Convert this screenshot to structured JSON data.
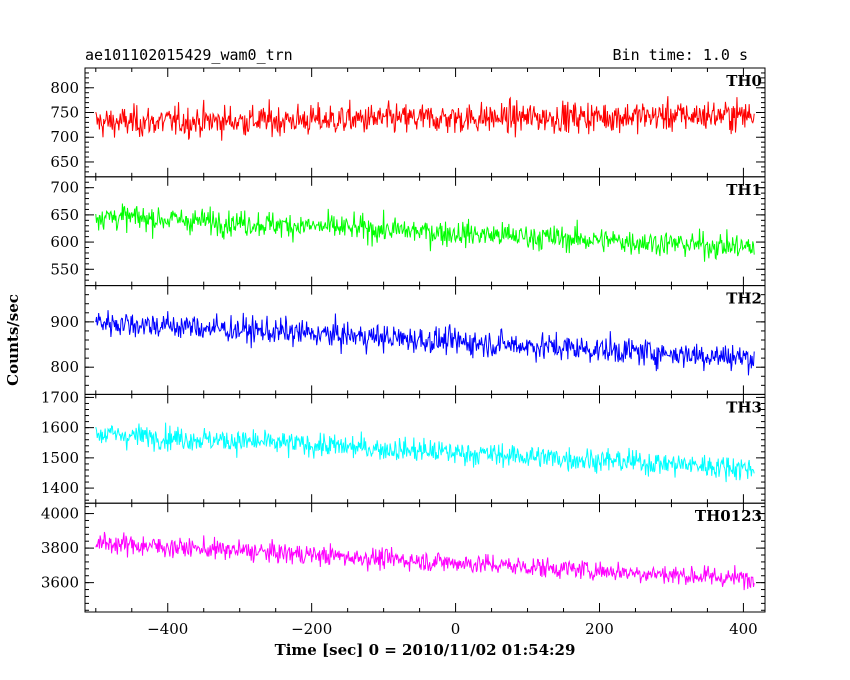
{
  "chart_data": {
    "type": "line",
    "title_left": "ae101102015429_wam0_trn",
    "title_right": "Bin time: 1.0 s",
    "xlabel": "Time [sec] 0 = 2010/11/02 01:54:29",
    "ylabel": "Counts/sec",
    "xlim": [
      -515,
      430
    ],
    "x_ticks": [
      -400,
      -200,
      0,
      200,
      400
    ],
    "x_range": [
      -500,
      415
    ],
    "panels": [
      {
        "name": "TH0",
        "color": "#ff0000",
        "ylim": [
          620,
          840
        ],
        "y_ticks": [
          650,
          700,
          750,
          800
        ],
        "start": 730,
        "end": 745,
        "noise": 40,
        "clip_low": 620,
        "clip_high": 840
      },
      {
        "name": "TH1",
        "color": "#00ff00",
        "ylim": [
          520,
          720
        ],
        "y_ticks": [
          550,
          600,
          650,
          700
        ],
        "start": 648,
        "end": 590,
        "noise": 30,
        "clip_low": 520,
        "clip_high": 720
      },
      {
        "name": "TH2",
        "color": "#0000ff",
        "ylim": [
          740,
          980
        ],
        "y_ticks": [
          800,
          900
        ],
        "start": 900,
        "end": 820,
        "noise": 38,
        "clip_low": 740,
        "clip_high": 980
      },
      {
        "name": "TH3",
        "color": "#00ffff",
        "ylim": [
          1350,
          1710
        ],
        "y_ticks": [
          1400,
          1500,
          1600,
          1700
        ],
        "start": 1580,
        "end": 1465,
        "noise": 50,
        "clip_low": 1350,
        "clip_high": 1710
      },
      {
        "name": "TH0123",
        "color": "#ff00ff",
        "ylim": [
          3430,
          4060
        ],
        "y_ticks": [
          3600,
          3800,
          4000
        ],
        "start": 3830,
        "end": 3620,
        "noise": 75,
        "clip_low": 3430,
        "clip_high": 4060
      }
    ]
  }
}
